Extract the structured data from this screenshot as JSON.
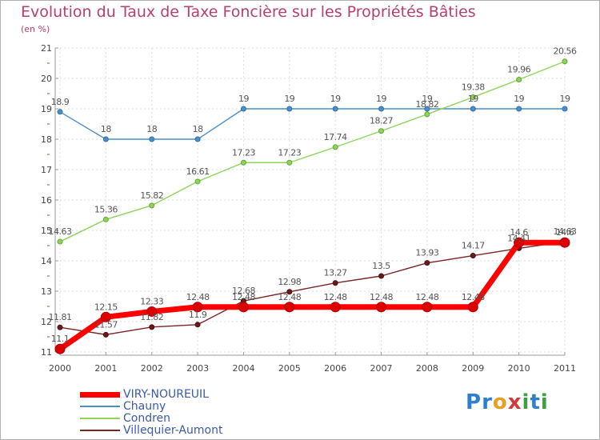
{
  "title": "Evolution du Taux de Taxe Foncière sur les Propriétés Bâties",
  "unit_label": "(en %)",
  "brand": {
    "letters": [
      {
        "ch": "P",
        "color": "#2f7fd1"
      },
      {
        "ch": "r",
        "color": "#2f7fd1"
      },
      {
        "ch": "o",
        "color": "#e8a020"
      },
      {
        "ch": "x",
        "color": "#d23b3b"
      },
      {
        "ch": "i",
        "color": "#3d9f3d"
      },
      {
        "ch": "t",
        "color": "#2f7fd1"
      },
      {
        "ch": "i",
        "color": "#3d9f3d"
      }
    ]
  },
  "chart_data": {
    "type": "line",
    "x": [
      "2000",
      "2001",
      "2002",
      "2003",
      "2004",
      "2005",
      "2006",
      "2007",
      "2008",
      "2009",
      "2010",
      "2011"
    ],
    "ylim": [
      11,
      21
    ],
    "yticks": [
      "11",
      "12",
      "13",
      "14",
      "15",
      "16",
      "17",
      "18",
      "19",
      "20",
      "21"
    ],
    "grid": true,
    "legend_position": "bottom-left",
    "series": [
      {
        "name": "Chauny",
        "color": "#4a8fc8",
        "values": [
          18.9,
          18,
          18,
          18,
          19,
          19,
          19,
          19,
          19,
          19,
          19,
          19
        ],
        "labels": [
          "18.9",
          "18",
          "18",
          "18",
          "19",
          "19",
          "19",
          "19",
          "19",
          "19",
          "19",
          "19"
        ]
      },
      {
        "name": "Condren",
        "color": "#8fd45a",
        "values": [
          14.63,
          15.36,
          15.82,
          16.61,
          17.23,
          17.23,
          17.74,
          18.27,
          18.82,
          19.38,
          19.96,
          20.56
        ],
        "labels": [
          "14.63",
          "15.36",
          "15.82",
          "16.61",
          "17.23",
          "17.23",
          "17.74",
          "18.27",
          "18.82",
          "19.38",
          "19.96",
          "20.56"
        ]
      },
      {
        "name": "Villequier-Aumont",
        "color": "#7a2424",
        "values": [
          11.81,
          11.57,
          11.82,
          11.9,
          12.68,
          12.98,
          13.27,
          13.5,
          13.93,
          14.17,
          14.41,
          14.63
        ],
        "labels": [
          "11.81",
          "11.57",
          "11.82",
          "11.9",
          "12.68",
          "12.98",
          "13.27",
          "13.5",
          "13.93",
          "14.17",
          "14.41",
          "14.63"
        ]
      },
      {
        "name": "VIRY-NOUREUIL",
        "color": "#ff0000",
        "values": [
          11.1,
          12.15,
          12.33,
          12.48,
          12.48,
          12.48,
          12.48,
          12.48,
          12.48,
          12.48,
          14.6,
          14.6
        ],
        "labels": [
          "11.1",
          "12.15",
          "12.33",
          "12.48",
          "12.48",
          "12.48",
          "12.48",
          "12.48",
          "12.48",
          "12.48",
          "14.6",
          "14.6"
        ]
      }
    ],
    "legend_order": [
      "VIRY-NOUREUIL",
      "Chauny",
      "Condren",
      "Villequier-Aumont"
    ]
  }
}
